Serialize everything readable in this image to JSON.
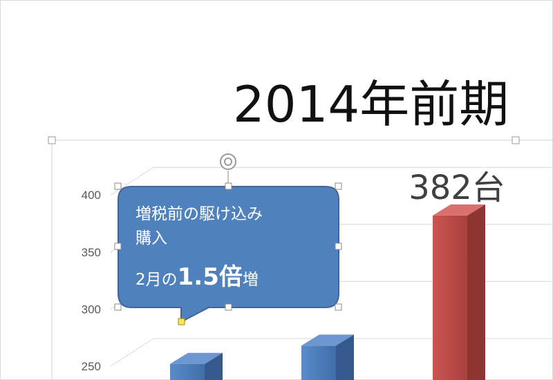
{
  "chart_data": {
    "type": "bar",
    "title": "2014年前期",
    "categories": [
      "",
      "",
      ""
    ],
    "series": [
      {
        "values": [
          252,
          268,
          382
        ]
      }
    ],
    "data_labels": [
      "",
      "",
      "382台"
    ],
    "yticks": [
      250,
      300,
      350,
      400
    ],
    "ylim": [
      200,
      425
    ],
    "grid": true,
    "colors": {
      "bar_blue": "#4f81bd",
      "bar_red": "#c0504d",
      "callout_fill": "#4f81bd",
      "callout_border": "#41659a"
    },
    "annotation": {
      "line1": "増税前の駆け込み",
      "line2": "購入",
      "line3_prefix": "2月の",
      "line3_emph": "1.5倍",
      "line3_suffix": "増"
    }
  }
}
